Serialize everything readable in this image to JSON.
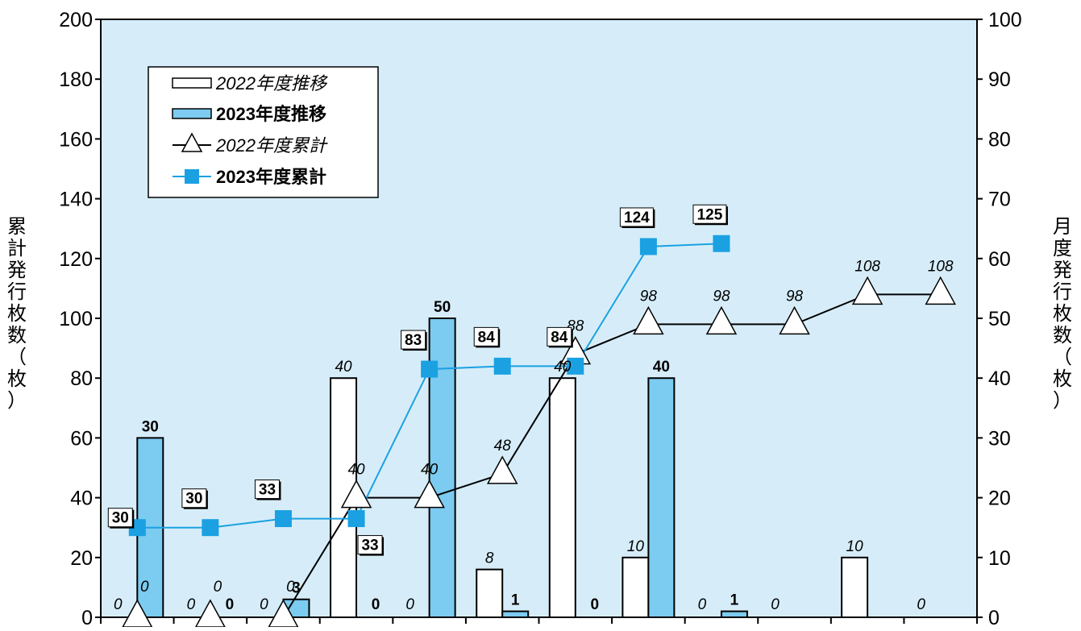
{
  "chart_data": {
    "type": "bar",
    "categories": [
      "",
      "",
      "",
      "",
      "",
      "",
      "",
      "",
      "",
      "",
      "",
      ""
    ],
    "left_axis": {
      "title": "累計発行枚数（枚）",
      "ylim": [
        0,
        200
      ],
      "ticks": [
        "0",
        "20",
        "40",
        "60",
        "80",
        "100",
        "120",
        "140",
        "160",
        "180",
        "200"
      ]
    },
    "right_axis": {
      "title": "月度発行枚数（枚）",
      "ylim": [
        0,
        100
      ],
      "ticks": [
        "0",
        "10",
        "20",
        "30",
        "40",
        "50",
        "60",
        "70",
        "80",
        "90",
        "100"
      ]
    },
    "legend": {
      "placement": "top-left",
      "entries": [
        "2022年度推移",
        "2023年度推移",
        "2022年度累計",
        "2023年度累計"
      ]
    },
    "series": [
      {
        "name": "2022年度推移",
        "kind": "bar",
        "axis": "right",
        "color": "#ffffff",
        "values": [
          0,
          0,
          0,
          40,
          0,
          8,
          40,
          10,
          0,
          0,
          10,
          0
        ],
        "labels": [
          "0",
          "0",
          "0",
          "40",
          "0",
          "8",
          "40",
          "10",
          "0",
          "0",
          "10",
          "0"
        ]
      },
      {
        "name": "2023年度推移",
        "kind": "bar",
        "axis": "right",
        "color": "#7ccbf0",
        "values": [
          30,
          0,
          3,
          0,
          50,
          1,
          0,
          40,
          1,
          null,
          null,
          null
        ],
        "labels": [
          "30",
          "0",
          "3",
          "0",
          "50",
          "1",
          "0",
          "40",
          "1",
          "",
          "",
          ""
        ]
      },
      {
        "name": "2022年度累計",
        "kind": "line",
        "axis": "left",
        "color": "#000000",
        "marker": "triangle",
        "values": [
          0,
          0,
          0,
          40,
          40,
          48,
          88,
          98,
          98,
          98,
          108,
          108
        ],
        "labels": [
          "0",
          "0",
          "0",
          "40",
          "40",
          "48",
          "88",
          "98",
          "98",
          "98",
          "108",
          "108"
        ]
      },
      {
        "name": "2023年度累計",
        "kind": "line",
        "axis": "left",
        "color": "#1ba1e2",
        "marker": "square",
        "values": [
          30,
          30,
          33,
          33,
          83,
          84,
          84,
          124,
          125,
          null,
          null,
          null
        ],
        "labels": [
          "30",
          "30",
          "33",
          "33",
          "83",
          "84",
          "84",
          "124",
          "125",
          "",
          "",
          ""
        ]
      }
    ],
    "grid": false,
    "background": "#d6edf9"
  }
}
